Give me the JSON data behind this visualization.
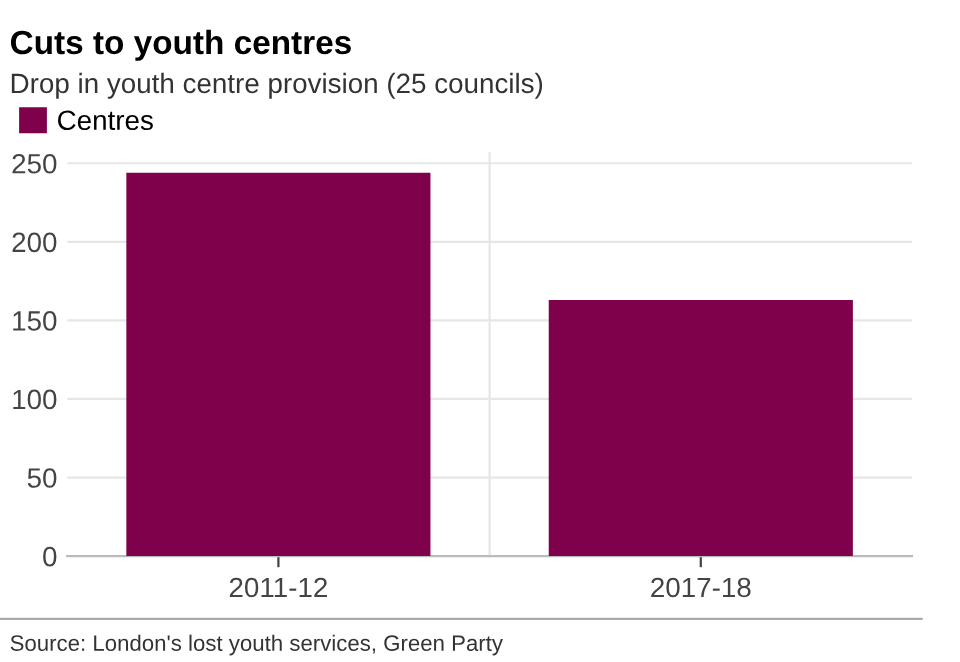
{
  "chart_data": {
    "type": "bar",
    "title": "Cuts to youth centres",
    "subtitle": "Drop in youth centre provision (25 councils)",
    "categories": [
      "2011-12",
      "2017-18"
    ],
    "series": [
      {
        "name": "Centres",
        "color": "#7f004b",
        "values": [
          244,
          163
        ]
      }
    ],
    "ylim": [
      0,
      257
    ],
    "yticks": [
      0,
      50,
      100,
      150,
      200,
      250
    ],
    "grid": "y",
    "legend": "top left",
    "annotations": [
      "Source: London's lost youth services, Green Party"
    ]
  }
}
